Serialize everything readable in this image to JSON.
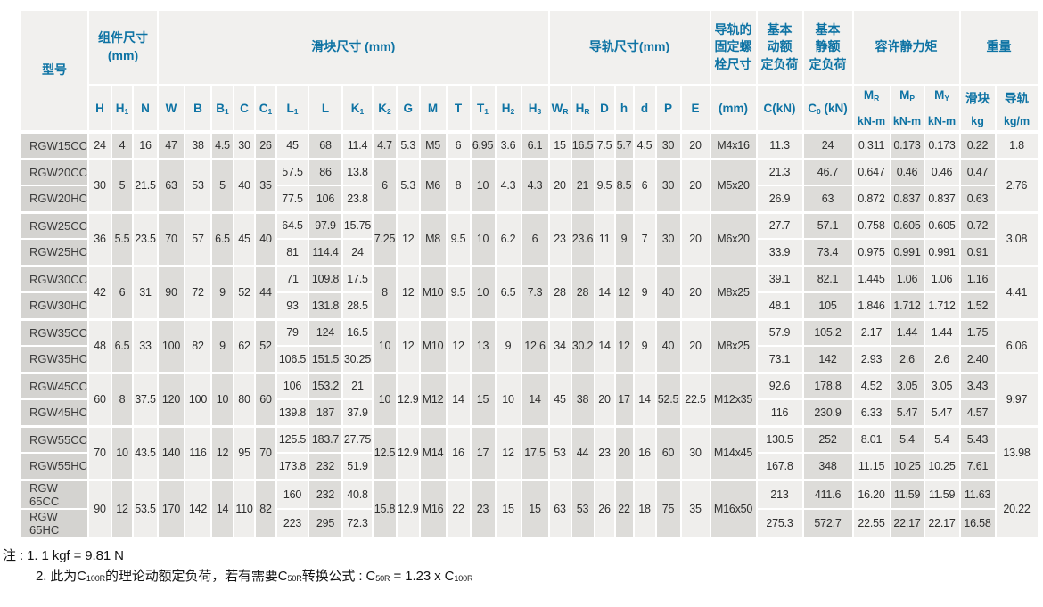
{
  "table": {
    "header": {
      "groups": [
        {
          "id": "model",
          "label": "型号",
          "rowspan": 2,
          "colspan": 1
        },
        {
          "id": "component-dims",
          "label": "组件尺寸\n(mm)",
          "colspan": 3
        },
        {
          "id": "block-dims",
          "label": "滑块尺寸 (mm)",
          "colspan": 15
        },
        {
          "id": "rail-dims",
          "label": "导轨尺寸(mm)",
          "colspan": 7
        },
        {
          "id": "rail-bolt-size",
          "label": "导轨的\n固定螺\n栓尺寸",
          "colspan": 1
        },
        {
          "id": "basic-dynamic-load",
          "label": "基本\n动额\n定负荷",
          "colspan": 1
        },
        {
          "id": "basic-static-load",
          "label": "基本\n静额\n定负荷",
          "colspan": 1
        },
        {
          "id": "allowable-static-moment",
          "label": "容许静力矩",
          "colspan": 3
        },
        {
          "id": "weight",
          "label": "重量",
          "colspan": 2
        }
      ],
      "cols": [
        {
          "t": "H"
        },
        {
          "t": "H",
          "s": "1"
        },
        {
          "t": "N"
        },
        {
          "t": "W"
        },
        {
          "t": "B"
        },
        {
          "t": "B",
          "s": "1"
        },
        {
          "t": "C"
        },
        {
          "t": "C",
          "s": "1"
        },
        {
          "t": "L",
          "s": "1"
        },
        {
          "t": "L"
        },
        {
          "t": "K",
          "s": "1"
        },
        {
          "t": "K",
          "s": "2"
        },
        {
          "t": "G"
        },
        {
          "t": "M"
        },
        {
          "t": "T"
        },
        {
          "t": "T",
          "s": "1"
        },
        {
          "t": "H",
          "s": "2"
        },
        {
          "t": "H",
          "s": "3"
        },
        {
          "t": "W",
          "s": "R"
        },
        {
          "t": "H",
          "s": "R"
        },
        {
          "t": "D"
        },
        {
          "t": "h"
        },
        {
          "t": "d"
        },
        {
          "t": "P"
        },
        {
          "t": "E"
        },
        {
          "t": "(mm)"
        },
        {
          "t": "C(kN)"
        },
        {
          "t": "C",
          "s": "0",
          "t2": "(kN)"
        },
        {
          "t": "M",
          "s": "R",
          "unit": "kN-m"
        },
        {
          "t": "M",
          "s": "P",
          "unit": "kN-m"
        },
        {
          "t": "M",
          "s": "Y",
          "unit": "kN-m"
        },
        {
          "t": "滑块",
          "unit": "kg"
        },
        {
          "t": "导轨",
          "unit": "kg/m"
        }
      ]
    },
    "row_groups": [
      {
        "models": [
          "RGW15CC"
        ],
        "shared": {
          "H": "24",
          "H1": "4",
          "N": "16",
          "W": "47",
          "B": "38",
          "B1": "4.5",
          "C": "30",
          "C1": "26",
          "K2": "4.7",
          "G": "5.3",
          "M": "M5",
          "T": "6",
          "T1": "6.95",
          "H2": "3.6",
          "H3": "6.1",
          "WR": "15",
          "HR": "16.5",
          "D": "7.5",
          "h": "5.7",
          "d": "4.5",
          "P": "30",
          "E": "20",
          "bolt": "M4x16",
          "rail_kg": "1.8"
        },
        "per": [
          {
            "L1": "45",
            "L": "68",
            "K1": "11.4",
            "Cdyn": "11.3",
            "C0": "24",
            "MR": "0.311",
            "MP": "0.173",
            "MY": "0.173",
            "block_kg": "0.22"
          }
        ]
      },
      {
        "models": [
          "RGW20CC",
          "RGW20HC"
        ],
        "shared": {
          "H": "30",
          "H1": "5",
          "N": "21.5",
          "W": "63",
          "B": "53",
          "B1": "5",
          "C": "40",
          "C1": "35",
          "K2": "6",
          "G": "5.3",
          "M": "M6",
          "T": "8",
          "T1": "10",
          "H2": "4.3",
          "H3": "4.3",
          "WR": "20",
          "HR": "21",
          "D": "9.5",
          "h": "8.5",
          "d": "6",
          "P": "30",
          "E": "20",
          "bolt": "M5x20",
          "rail_kg": "2.76"
        },
        "per": [
          {
            "L1": "57.5",
            "L": "86",
            "K1": "13.8",
            "Cdyn": "21.3",
            "C0": "46.7",
            "MR": "0.647",
            "MP": "0.46",
            "MY": "0.46",
            "block_kg": "0.47"
          },
          {
            "L1": "77.5",
            "L": "106",
            "K1": "23.8",
            "Cdyn": "26.9",
            "C0": "63",
            "MR": "0.872",
            "MP": "0.837",
            "MY": "0.837",
            "block_kg": "0.63"
          }
        ]
      },
      {
        "models": [
          "RGW25CC",
          "RGW25HC"
        ],
        "shared": {
          "H": "36",
          "H1": "5.5",
          "N": "23.5",
          "W": "70",
          "B": "57",
          "B1": "6.5",
          "C": "45",
          "C1": "40",
          "K2": "7.25",
          "G": "12",
          "M": "M8",
          "T": "9.5",
          "T1": "10",
          "H2": "6.2",
          "H3": "6",
          "WR": "23",
          "HR": "23.6",
          "D": "11",
          "h": "9",
          "d": "7",
          "P": "30",
          "E": "20",
          "bolt": "M6x20",
          "rail_kg": "3.08"
        },
        "per": [
          {
            "L1": "64.5",
            "L": "97.9",
            "K1": "15.75",
            "Cdyn": "27.7",
            "C0": "57.1",
            "MR": "0.758",
            "MP": "0.605",
            "MY": "0.605",
            "block_kg": "0.72"
          },
          {
            "L1": "81",
            "L": "114.4",
            "K1": "24",
            "Cdyn": "33.9",
            "C0": "73.4",
            "MR": "0.975",
            "MP": "0.991",
            "MY": "0.991",
            "block_kg": "0.91"
          }
        ]
      },
      {
        "models": [
          "RGW30CC",
          "RGW30HC"
        ],
        "shared": {
          "H": "42",
          "H1": "6",
          "N": "31",
          "W": "90",
          "B": "72",
          "B1": "9",
          "C": "52",
          "C1": "44",
          "K2": "8",
          "G": "12",
          "M": "M10",
          "T": "9.5",
          "T1": "10",
          "H2": "6.5",
          "H3": "7.3",
          "WR": "28",
          "HR": "28",
          "D": "14",
          "h": "12",
          "d": "9",
          "P": "40",
          "E": "20",
          "bolt": "M8x25",
          "rail_kg": "4.41"
        },
        "per": [
          {
            "L1": "71",
            "L": "109.8",
            "K1": "17.5",
            "Cdyn": "39.1",
            "C0": "82.1",
            "MR": "1.445",
            "MP": "1.06",
            "MY": "1.06",
            "block_kg": "1.16"
          },
          {
            "L1": "93",
            "L": "131.8",
            "K1": "28.5",
            "Cdyn": "48.1",
            "C0": "105",
            "MR": "1.846",
            "MP": "1.712",
            "MY": "1.712",
            "block_kg": "1.52"
          }
        ]
      },
      {
        "models": [
          "RGW35CC",
          "RGW35HC"
        ],
        "shared": {
          "H": "48",
          "H1": "6.5",
          "N": "33",
          "W": "100",
          "B": "82",
          "B1": "9",
          "C": "62",
          "C1": "52",
          "K2": "10",
          "G": "12",
          "M": "M10",
          "T": "12",
          "T1": "13",
          "H2": "9",
          "H3": "12.6",
          "WR": "34",
          "HR": "30.2",
          "D": "14",
          "h": "12",
          "d": "9",
          "P": "40",
          "E": "20",
          "bolt": "M8x25",
          "rail_kg": "6.06"
        },
        "per": [
          {
            "L1": "79",
            "L": "124",
            "K1": "16.5",
            "Cdyn": "57.9",
            "C0": "105.2",
            "MR": "2.17",
            "MP": "1.44",
            "MY": "1.44",
            "block_kg": "1.75"
          },
          {
            "L1": "106.5",
            "L": "151.5",
            "K1": "30.25",
            "Cdyn": "73.1",
            "C0": "142",
            "MR": "2.93",
            "MP": "2.6",
            "MY": "2.6",
            "block_kg": "2.40"
          }
        ]
      },
      {
        "models": [
          "RGW45CC",
          "RGW45HC"
        ],
        "shared": {
          "H": "60",
          "H1": "8",
          "N": "37.5",
          "W": "120",
          "B": "100",
          "B1": "10",
          "C": "80",
          "C1": "60",
          "K2": "10",
          "G": "12.9",
          "M": "M12",
          "T": "14",
          "T1": "15",
          "H2": "10",
          "H3": "14",
          "WR": "45",
          "HR": "38",
          "D": "20",
          "h": "17",
          "d": "14",
          "P": "52.5",
          "E": "22.5",
          "bolt": "M12x35",
          "rail_kg": "9.97"
        },
        "per": [
          {
            "L1": "106",
            "L": "153.2",
            "K1": "21",
            "Cdyn": "92.6",
            "C0": "178.8",
            "MR": "4.52",
            "MP": "3.05",
            "MY": "3.05",
            "block_kg": "3.43"
          },
          {
            "L1": "139.8",
            "L": "187",
            "K1": "37.9",
            "Cdyn": "116",
            "C0": "230.9",
            "MR": "6.33",
            "MP": "5.47",
            "MY": "5.47",
            "block_kg": "4.57"
          }
        ]
      },
      {
        "models": [
          "RGW55CC",
          "RGW55HC"
        ],
        "shared": {
          "H": "70",
          "H1": "10",
          "N": "43.5",
          "W": "140",
          "B": "116",
          "B1": "12",
          "C": "95",
          "C1": "70",
          "K2": "12.5",
          "G": "12.9",
          "M": "M14",
          "T": "16",
          "T1": "17",
          "H2": "12",
          "H3": "17.5",
          "WR": "53",
          "HR": "44",
          "D": "23",
          "h": "20",
          "d": "16",
          "P": "60",
          "E": "30",
          "bolt": "M14x45",
          "rail_kg": "13.98"
        },
        "per": [
          {
            "L1": "125.5",
            "L": "183.7",
            "K1": "27.75",
            "Cdyn": "130.5",
            "C0": "252",
            "MR": "8.01",
            "MP": "5.4",
            "MY": "5.4",
            "block_kg": "5.43"
          },
          {
            "L1": "173.8",
            "L": "232",
            "K1": "51.9",
            "Cdyn": "167.8",
            "C0": "348",
            "MR": "11.15",
            "MP": "10.25",
            "MY": "10.25",
            "block_kg": "7.61"
          }
        ]
      },
      {
        "models": [
          "RGW 65CC",
          "RGW 65HC"
        ],
        "shared": {
          "H": "90",
          "H1": "12",
          "N": "53.5",
          "W": "170",
          "B": "142",
          "B1": "14",
          "C": "110",
          "C1": "82",
          "K2": "15.8",
          "G": "12.9",
          "M": "M16",
          "T": "22",
          "T1": "23",
          "H2": "15",
          "H3": "15",
          "WR": "63",
          "HR": "53",
          "D": "26",
          "h": "22",
          "d": "18",
          "P": "75",
          "E": "35",
          "bolt": "M16x50",
          "rail_kg": "20.22"
        },
        "per": [
          {
            "L1": "160",
            "L": "232",
            "K1": "40.8",
            "Cdyn": "213",
            "C0": "411.6",
            "MR": "16.20",
            "MP": "11.59",
            "MY": "11.59",
            "block_kg": "11.63"
          },
          {
            "L1": "223",
            "L": "295",
            "K1": "72.3",
            "Cdyn": "275.3",
            "C0": "572.7",
            "MR": "22.55",
            "MP": "22.17",
            "MY": "22.17",
            "block_kg": "16.58"
          }
        ]
      }
    ]
  },
  "notes": {
    "line1": "注 : 1.  1 kgf = 9.81 N",
    "line2_segments": [
      {
        "t": "2.  此为C"
      },
      {
        "s": "100R"
      },
      {
        "t": "的理论动额定负荷，若有需要C"
      },
      {
        "s": "50R"
      },
      {
        "t": "转换公式 : C"
      },
      {
        "s": "50R"
      },
      {
        "t": " = 1.23 x C"
      },
      {
        "s": "100R"
      }
    ]
  },
  "colors": {
    "header_blue": "#0e73a4",
    "header_bg": "#f1f0ee",
    "stripe_light": "#efeeec",
    "stripe_dark": "#dddcd9",
    "model_cell_bg": "#d4d3d0",
    "text": "#2e2e2e"
  }
}
